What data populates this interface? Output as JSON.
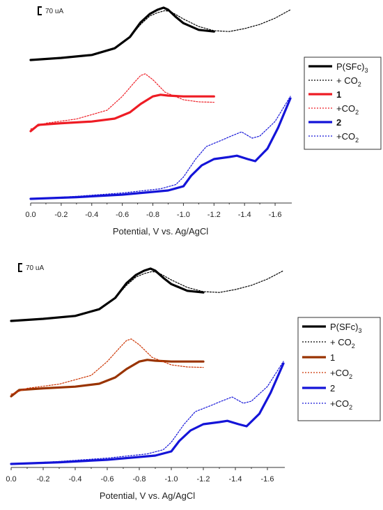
{
  "chart_data": [
    {
      "type": "line",
      "xlabel": "Potential, V vs. Ag/AgCl",
      "xlim": [
        0.0,
        -1.7
      ],
      "xticks": [
        "0.0",
        "-0.2",
        "-0.4",
        "-0.6",
        "-0.8",
        "-1.0",
        "-1.2",
        "-1.4",
        "-1.6"
      ],
      "xtick_values": [
        0.0,
        -0.2,
        -0.4,
        -0.6,
        -0.8,
        -1.0,
        -1.2,
        -1.4,
        -1.6
      ],
      "scale_bar": "70 uA",
      "grid": false,
      "legend_position": "right",
      "series": [
        {
          "name": "P(SFc)3",
          "color": "#000000",
          "style": "solid",
          "thick": true,
          "offset": 0,
          "x": [
            0.0,
            -0.2,
            -0.4,
            -0.55,
            -0.65,
            -0.72,
            -0.78,
            -0.83,
            -0.87,
            -0.9,
            -0.95,
            -1.0,
            -1.1,
            -1.2
          ],
          "y": [
            0,
            5,
            12,
            28,
            55,
            90,
            110,
            120,
            125,
            120,
            103,
            88,
            72,
            68
          ]
        },
        {
          "name": "+ CO2",
          "color": "#000000",
          "style": "dotted",
          "thick": false,
          "offset": 0,
          "x": [
            0.0,
            -0.2,
            -0.4,
            -0.55,
            -0.65,
            -0.72,
            -0.78,
            -0.83,
            -0.88,
            -0.92,
            -1.0,
            -1.1,
            -1.2,
            -1.3,
            -1.4,
            -1.5,
            -1.6,
            -1.7
          ],
          "y": [
            0,
            5,
            12,
            28,
            55,
            85,
            105,
            113,
            118,
            115,
            98,
            80,
            70,
            68,
            75,
            85,
            100,
            120
          ]
        },
        {
          "name": "1",
          "color": "#ee1c24",
          "style": "solid",
          "thick": true,
          "offset": 0,
          "x": [
            0.0,
            -0.05,
            -0.2,
            -0.4,
            -0.55,
            -0.65,
            -0.72,
            -0.8,
            -0.85,
            -0.9,
            -1.0,
            -1.1,
            -1.2
          ],
          "y": [
            -5,
            10,
            14,
            18,
            25,
            40,
            60,
            78,
            82,
            80,
            78,
            78,
            78
          ]
        },
        {
          "name": "+CO2",
          "color": "#ee1c24",
          "style": "dotted",
          "thick": false,
          "offset": 0,
          "x": [
            0.0,
            -0.1,
            -0.3,
            -0.5,
            -0.6,
            -0.68,
            -0.72,
            -0.75,
            -0.8,
            -0.88,
            -1.0,
            -1.1,
            -1.2
          ],
          "y": [
            0,
            14,
            24,
            45,
            78,
            112,
            128,
            132,
            118,
            88,
            70,
            65,
            64
          ]
        },
        {
          "name": "2",
          "color": "#1414d8",
          "style": "solid",
          "thick": true,
          "offset": 0,
          "x": [
            0.0,
            -0.3,
            -0.6,
            -0.9,
            -1.0,
            -1.05,
            -1.12,
            -1.2,
            -1.3,
            -1.35,
            -1.42,
            -1.47,
            -1.55,
            -1.62,
            -1.7
          ],
          "y": [
            0,
            4,
            10,
            20,
            30,
            55,
            80,
            95,
            100,
            103,
            95,
            90,
            120,
            170,
            240
          ]
        },
        {
          "name": "+CO2",
          "color": "#1414d8",
          "style": "dotted",
          "thick": false,
          "offset": 0,
          "x": [
            0.0,
            -0.3,
            -0.6,
            -0.85,
            -0.95,
            -1.0,
            -1.08,
            -1.15,
            -1.25,
            -1.3,
            -1.38,
            -1.45,
            -1.5,
            -1.6,
            -1.7
          ],
          "y": [
            0,
            6,
            14,
            24,
            34,
            52,
            95,
            125,
            140,
            148,
            160,
            145,
            150,
            185,
            245
          ]
        }
      ]
    },
    {
      "type": "line",
      "xlabel": "Potential, V vs. Ag/AgCl",
      "xlim": [
        0.0,
        -1.7
      ],
      "xticks": [
        "0.0",
        "-0.2",
        "-0.4",
        "-0.6",
        "-0.8",
        "-1.0",
        "-1.2",
        "-1.4",
        "-1.6"
      ],
      "xtick_values": [
        0.0,
        -0.2,
        -0.4,
        -0.6,
        -0.8,
        -1.0,
        -1.2,
        -1.4,
        -1.6
      ],
      "scale_bar": "70 uA",
      "grid": false,
      "legend_position": "right",
      "series": [
        {
          "name": "P(SFc)3",
          "color": "#000000",
          "style": "solid",
          "thick": true,
          "offset": 0,
          "x": [
            0.0,
            -0.2,
            -0.4,
            -0.55,
            -0.65,
            -0.72,
            -0.78,
            -0.83,
            -0.87,
            -0.9,
            -0.95,
            -1.0,
            -1.1,
            -1.2
          ],
          "y": [
            0,
            5,
            12,
            28,
            55,
            90,
            110,
            120,
            125,
            120,
            103,
            88,
            72,
            68
          ]
        },
        {
          "name": "+ CO2",
          "color": "#000000",
          "style": "dotted",
          "thick": false,
          "offset": 0,
          "x": [
            0.0,
            -0.2,
            -0.4,
            -0.55,
            -0.65,
            -0.72,
            -0.78,
            -0.83,
            -0.88,
            -0.92,
            -1.0,
            -1.1,
            -1.2,
            -1.3,
            -1.4,
            -1.5,
            -1.6,
            -1.7
          ],
          "y": [
            0,
            5,
            12,
            28,
            55,
            85,
            105,
            113,
            118,
            115,
            98,
            80,
            70,
            68,
            75,
            85,
            100,
            120
          ]
        },
        {
          "name": "1",
          "color": "#993300",
          "style": "solid",
          "thick": true,
          "offset": 0,
          "x": [
            0.0,
            -0.05,
            -0.2,
            -0.4,
            -0.55,
            -0.65,
            -0.72,
            -0.8,
            -0.85,
            -0.9,
            -1.0,
            -1.1,
            -1.2
          ],
          "y": [
            -5,
            10,
            14,
            18,
            25,
            40,
            60,
            78,
            82,
            80,
            78,
            78,
            78
          ]
        },
        {
          "name": "+CO2",
          "color": "#cc3300",
          "style": "dotted",
          "thick": false,
          "offset": 0,
          "x": [
            0.0,
            -0.1,
            -0.3,
            -0.5,
            -0.6,
            -0.68,
            -0.72,
            -0.75,
            -0.8,
            -0.88,
            -1.0,
            -1.1,
            -1.2
          ],
          "y": [
            0,
            14,
            24,
            45,
            78,
            112,
            128,
            132,
            118,
            88,
            70,
            65,
            64
          ]
        },
        {
          "name": "2",
          "color": "#1414d8",
          "style": "solid",
          "thick": true,
          "offset": 0,
          "x": [
            0.0,
            -0.3,
            -0.6,
            -0.9,
            -1.0,
            -1.05,
            -1.12,
            -1.2,
            -1.3,
            -1.35,
            -1.42,
            -1.47,
            -1.55,
            -1.62,
            -1.7
          ],
          "y": [
            0,
            4,
            10,
            20,
            30,
            55,
            80,
            95,
            100,
            103,
            95,
            90,
            120,
            170,
            240
          ]
        },
        {
          "name": "+CO2",
          "color": "#1414d8",
          "style": "dotted",
          "thick": false,
          "offset": 0,
          "x": [
            0.0,
            -0.3,
            -0.6,
            -0.85,
            -0.95,
            -1.0,
            -1.08,
            -1.15,
            -1.25,
            -1.3,
            -1.38,
            -1.45,
            -1.5,
            -1.6,
            -1.7
          ],
          "y": [
            0,
            6,
            14,
            24,
            34,
            52,
            95,
            125,
            140,
            148,
            160,
            145,
            150,
            185,
            245
          ]
        }
      ]
    }
  ]
}
